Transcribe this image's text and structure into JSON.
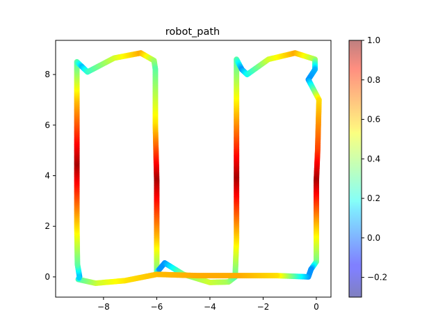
{
  "chart_data": {
    "type": "scatter",
    "title": "robot_path",
    "xlabel": "",
    "ylabel": "",
    "xlim": [
      -9.8,
      0.55
    ],
    "ylim": [
      -0.8,
      9.35
    ],
    "xticks": [
      -8,
      -6,
      -4,
      -2,
      0
    ],
    "xtick_labels": [
      "−8",
      "−6",
      "−4",
      "−2",
      "0"
    ],
    "yticks": [
      0,
      2,
      4,
      6,
      8
    ],
    "ytick_labels": [
      "0",
      "2",
      "4",
      "6",
      "8"
    ],
    "grid": false,
    "legend": "none",
    "colormap": "jet",
    "colorbar": {
      "range": [
        -0.3,
        1.0
      ],
      "ticks": [
        -0.2,
        0.0,
        0.2,
        0.4,
        0.6,
        0.8,
        1.0
      ],
      "tick_labels": [
        "−0.2",
        "0.0",
        "0.2",
        "0.4",
        "0.6",
        "0.8",
        "1.0"
      ],
      "alpha": 0.5
    },
    "path_waypoints": [
      {
        "x": -8.9,
        "y": 0.0,
        "v": 0.05
      },
      {
        "x": -8.98,
        "y": 0.5,
        "v": 0.3
      },
      {
        "x": -9.0,
        "y": 2.0,
        "v": 0.55
      },
      {
        "x": -9.0,
        "y": 4.5,
        "v": 0.95
      },
      {
        "x": -9.0,
        "y": 7.0,
        "v": 0.6
      },
      {
        "x": -9.0,
        "y": 8.5,
        "v": 0.3
      },
      {
        "x": -8.8,
        "y": 8.3,
        "v": 0.1
      },
      {
        "x": -8.6,
        "y": 8.1,
        "v": 0.25
      },
      {
        "x": -7.6,
        "y": 8.65,
        "v": 0.45
      },
      {
        "x": -6.6,
        "y": 8.85,
        "v": 0.62
      },
      {
        "x": -6.1,
        "y": 8.55,
        "v": 0.4
      },
      {
        "x": -6.05,
        "y": 8.2,
        "v": 0.3
      },
      {
        "x": -6.05,
        "y": 6.0,
        "v": 0.55
      },
      {
        "x": -6.0,
        "y": 3.8,
        "v": 0.95
      },
      {
        "x": -6.0,
        "y": 1.5,
        "v": 0.6
      },
      {
        "x": -6.0,
        "y": 0.2,
        "v": 0.35
      },
      {
        "x": -5.9,
        "y": 0.3,
        "v": 0.05
      },
      {
        "x": -5.7,
        "y": 0.55,
        "v": 0.05
      },
      {
        "x": -5.0,
        "y": 0.1,
        "v": 0.35
      },
      {
        "x": -4.0,
        "y": -0.22,
        "v": 0.45
      },
      {
        "x": -3.3,
        "y": -0.2,
        "v": 0.4
      },
      {
        "x": -3.05,
        "y": 0.0,
        "v": 0.3
      },
      {
        "x": -3.0,
        "y": 1.5,
        "v": 0.55
      },
      {
        "x": -3.0,
        "y": 4.0,
        "v": 0.95
      },
      {
        "x": -3.0,
        "y": 6.5,
        "v": 0.6
      },
      {
        "x": -3.0,
        "y": 8.6,
        "v": 0.3
      },
      {
        "x": -2.8,
        "y": 8.2,
        "v": 0.05
      },
      {
        "x": -2.6,
        "y": 8.0,
        "v": 0.2
      },
      {
        "x": -1.8,
        "y": 8.6,
        "v": 0.45
      },
      {
        "x": -0.8,
        "y": 8.85,
        "v": 0.62
      },
      {
        "x": -0.05,
        "y": 8.6,
        "v": 0.4
      },
      {
        "x": -0.05,
        "y": 8.2,
        "v": 0.1
      },
      {
        "x": -0.3,
        "y": 7.8,
        "v": 0.05
      },
      {
        "x": 0.1,
        "y": 7.0,
        "v": 0.55
      },
      {
        "x": 0.05,
        "y": 5.0,
        "v": 0.75
      },
      {
        "x": 0.0,
        "y": 3.8,
        "v": 0.95
      },
      {
        "x": 0.0,
        "y": 2.0,
        "v": 0.6
      },
      {
        "x": 0.0,
        "y": 0.6,
        "v": 0.35
      },
      {
        "x": -0.2,
        "y": 0.3,
        "v": 0.05
      },
      {
        "x": -0.3,
        "y": 0.0,
        "v": 0.05
      },
      {
        "x": -1.5,
        "y": 0.05,
        "v": 0.55
      },
      {
        "x": -3.0,
        "y": 0.05,
        "v": 0.62
      },
      {
        "x": -4.5,
        "y": 0.05,
        "v": 0.62
      },
      {
        "x": -6.0,
        "y": 0.1,
        "v": 0.6
      },
      {
        "x": -7.2,
        "y": -0.15,
        "v": 0.55
      },
      {
        "x": -8.3,
        "y": -0.25,
        "v": 0.45
      },
      {
        "x": -8.95,
        "y": -0.1,
        "v": 0.3
      }
    ]
  }
}
